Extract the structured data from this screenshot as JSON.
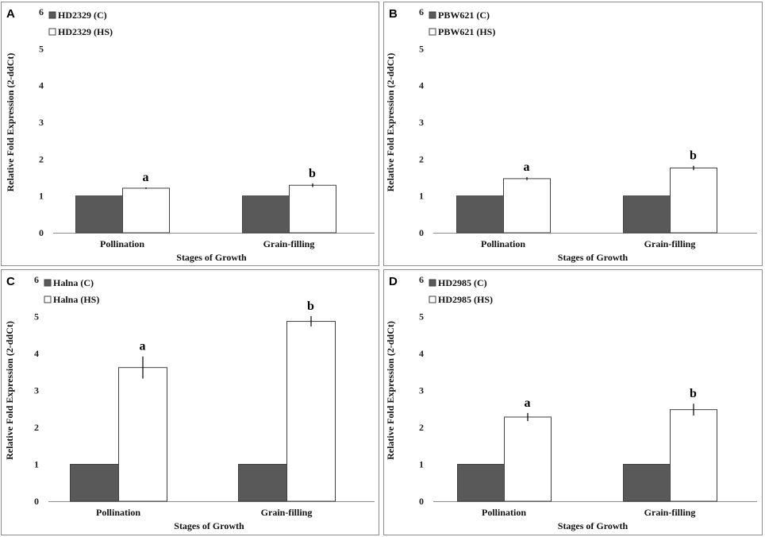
{
  "colors": {
    "control": "#595959",
    "heat_stress": "#ffffff",
    "bar_stroke": "#404040",
    "axis": "#8c8c8c"
  },
  "chart_data": [
    {
      "panel": "A",
      "type": "bar",
      "categories": [
        "Pollination",
        "Grain-filling"
      ],
      "series": [
        {
          "name": "HD2329 (C)",
          "values": [
            1.0,
            1.0
          ],
          "errors": [
            0,
            0
          ]
        },
        {
          "name": "HD2329 (HS)",
          "values": [
            1.21,
            1.29
          ],
          "errors": [
            0.02,
            0.05
          ]
        }
      ],
      "significance": [
        "a",
        "b"
      ],
      "xlabel": "Stages of Growth",
      "ylabel": "Relative Fold Expression (2-ddCt)",
      "ylim": [
        0,
        6
      ],
      "yticks": [
        "0",
        "1",
        "2",
        "3",
        "4",
        "5",
        "6"
      ]
    },
    {
      "panel": "B",
      "type": "bar",
      "categories": [
        "Pollination",
        "Grain-filling"
      ],
      "series": [
        {
          "name": "PBW621 (C)",
          "values": [
            1.0,
            1.0
          ],
          "errors": [
            0,
            0
          ]
        },
        {
          "name": "PBW621 (HS)",
          "values": [
            1.47,
            1.76
          ],
          "errors": [
            0.04,
            0.06
          ]
        }
      ],
      "significance": [
        "a",
        "b"
      ],
      "xlabel": "Stages of Growth",
      "ylabel": "Relative Fold Expression (2-ddCt)",
      "ylim": [
        0,
        6
      ],
      "yticks": [
        "0",
        "1",
        "2",
        "3",
        "4",
        "5",
        "6"
      ]
    },
    {
      "panel": "C",
      "type": "bar",
      "categories": [
        "Pollination",
        "Grain-filling"
      ],
      "series": [
        {
          "name": "Halna (C)",
          "values": [
            1.0,
            1.0
          ],
          "errors": [
            0,
            0
          ]
        },
        {
          "name": "Halna (HS)",
          "values": [
            3.62,
            4.87
          ],
          "errors": [
            0.3,
            0.14
          ]
        }
      ],
      "significance": [
        "a",
        "b"
      ],
      "xlabel": "Stages of Growth",
      "ylabel": "Relative Fold Expression (2-ddCt)",
      "ylim": [
        0,
        6
      ],
      "yticks": [
        "0",
        "1",
        "2",
        "3",
        "4",
        "5",
        "6"
      ]
    },
    {
      "panel": "D",
      "type": "bar",
      "categories": [
        "Pollination",
        "Grain-filling"
      ],
      "series": [
        {
          "name": "HD2985 (C)",
          "values": [
            1.0,
            1.0
          ],
          "errors": [
            0,
            0
          ]
        },
        {
          "name": "HD2985 (HS)",
          "values": [
            2.28,
            2.48
          ],
          "errors": [
            0.11,
            0.16
          ]
        }
      ],
      "significance": [
        "a",
        "b"
      ],
      "xlabel": "Stages of Growth",
      "ylabel": "Relative Fold Expression (2-ddCt)",
      "ylim": [
        0,
        6
      ],
      "yticks": [
        "0",
        "1",
        "2",
        "3",
        "4",
        "5",
        "6"
      ]
    }
  ]
}
